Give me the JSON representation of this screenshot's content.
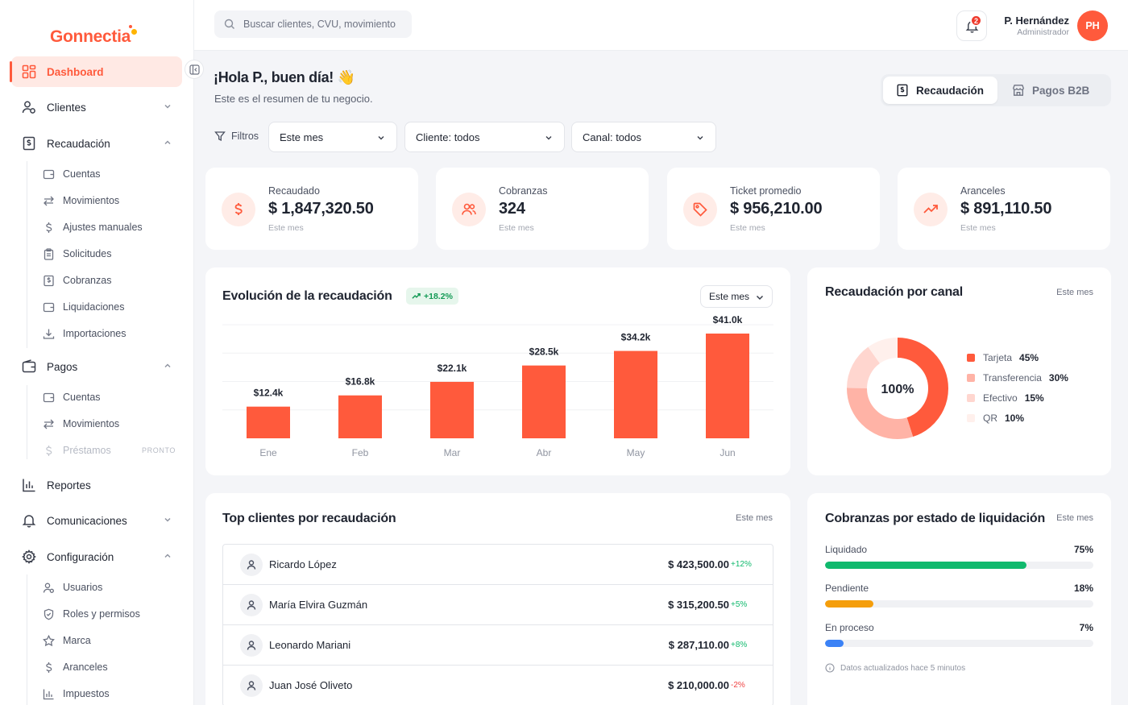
{
  "app": {
    "brand": "Gonnectia"
  },
  "sidebar": {
    "dashboard": "Dashboard",
    "clientes": "Clientes",
    "recaudacion": "Recaudación",
    "recaudacion_items": [
      "Cuentas",
      "Movimientos",
      "Ajustes manuales",
      "Solicitudes",
      "Cobranzas",
      "Liquidaciones",
      "Importaciones"
    ],
    "pagos": "Pagos",
    "pagos_items": [
      "Cuentas",
      "Movimientos",
      "Préstamos"
    ],
    "pronto": "PRONTO",
    "reportes": "Reportes",
    "comunicaciones": "Comunicaciones",
    "configuracion": "Configuración",
    "config_items": [
      "Usuarios",
      "Roles y permisos",
      "Marca",
      "Aranceles",
      "Impuestos"
    ]
  },
  "topbar": {
    "search_placeholder": "Buscar clientes, CVU, movimiento",
    "notifications_count": "2",
    "user_name": "P. Hernández",
    "user_role": "Administrador",
    "avatar_initials": "PH"
  },
  "header": {
    "greeting": "¡Hola P., buen día! 👋",
    "subtitle": "Este es el resumen de tu negocio.",
    "tabs": [
      "Recaudación",
      "Pagos B2B"
    ]
  },
  "filters": {
    "label": "Filtros",
    "period": "Este mes",
    "client": "Cliente: todos",
    "channel": "Canal: todos"
  },
  "kpis": [
    {
      "label": "Recaudado",
      "value": "$ 1,847,320.50",
      "period": "Este mes",
      "icon": "dollar-icon"
    },
    {
      "label": "Cobranzas",
      "value": "324",
      "period": "Este mes",
      "icon": "users-icon"
    },
    {
      "label": "Ticket promedio",
      "value": "$ 956,210.00",
      "period": "Este mes",
      "icon": "tag-icon"
    },
    {
      "label": "Aranceles",
      "value": "$ 891,110.50",
      "period": "Este mes",
      "icon": "trending-up-icon"
    }
  ],
  "evolution": {
    "title": "Evolución de la recaudación",
    "growth": "+18.2%",
    "period": "Este mes"
  },
  "channel": {
    "title": "Recaudación por canal",
    "period": "Este mes",
    "center_label": "100%",
    "legend": [
      {
        "name": "Tarjeta",
        "pct": "45%",
        "color": "#ff5a3c"
      },
      {
        "name": "Transferencia",
        "pct": "30%",
        "color": "#ffb3a6"
      },
      {
        "name": "Efectivo",
        "pct": "15%",
        "color": "#ffd6cf"
      },
      {
        "name": "QR",
        "pct": "10%",
        "color": "#fff0ec"
      }
    ]
  },
  "chart_data": [
    {
      "type": "bar",
      "title": "Evolución de la recaudación",
      "categories": [
        "Ene",
        "Feb",
        "Mar",
        "Abr",
        "May",
        "Jun"
      ],
      "values": [
        12.4,
        16.8,
        22.1,
        28.5,
        34.2,
        41.0
      ],
      "value_labels": [
        "$12.4k",
        "$16.8k",
        "$22.1k",
        "$28.5k",
        "$34.2k",
        "$41.0k"
      ],
      "ylim": [
        0,
        41
      ],
      "grid": true,
      "color": "#ff5a3c"
    },
    {
      "type": "pie",
      "title": "Recaudación por canal",
      "categories": [
        "Tarjeta",
        "Transferencia",
        "Efectivo",
        "QR"
      ],
      "values": [
        45,
        30,
        15,
        10
      ],
      "colors": [
        "#ff5a3c",
        "#ffb3a6",
        "#ffd6cf",
        "#fff0ec"
      ],
      "center_label": "100%"
    }
  ],
  "top_clients": {
    "title": "Top clientes por recaudación",
    "period": "Este mes",
    "rows": [
      {
        "name": "Ricardo López",
        "amount": "$ 423,500.00",
        "delta": "+12%",
        "positive": true
      },
      {
        "name": "María Elvira Guzmán",
        "amount": "$ 315,200.50",
        "delta": "+5%",
        "positive": true
      },
      {
        "name": "Leonardo Mariani",
        "amount": "$ 287,110.00",
        "delta": "+8%",
        "positive": true
      },
      {
        "name": "Juan José Oliveto",
        "amount": "$ 210,000.00",
        "delta": "-2%",
        "positive": false
      }
    ]
  },
  "settlement": {
    "title": "Cobranzas por estado de liquidación",
    "period": "Este mes",
    "rows": [
      {
        "label": "Liquidado",
        "pct": "75%",
        "value": 75,
        "color": "#10b96d"
      },
      {
        "label": "Pendiente",
        "pct": "18%",
        "value": 18,
        "color": "#f59e0b"
      },
      {
        "label": "En proceso",
        "pct": "7%",
        "value": 7,
        "color": "#3b82f6"
      }
    ],
    "updated": "Datos actualizados hace 5 minutos"
  }
}
